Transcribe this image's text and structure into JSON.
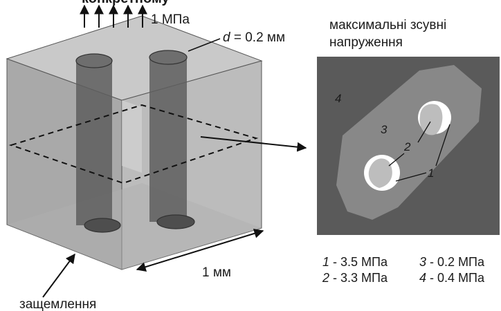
{
  "top_caption": "конкретному",
  "load_label": "1 МПа",
  "thickness_label": {
    "symbol": "d",
    "value": " = 0.2 мм"
  },
  "size_label": "1 мм",
  "fixed_label": "защемлення",
  "stress_title": [
    "максимальні зсувні",
    "напруження"
  ],
  "regions": [
    {
      "id": "1",
      "stress": "3.5 МПа",
      "color": "#ffffff"
    },
    {
      "id": "2",
      "stress": "3.3 МПа",
      "color": "#bdbdbd"
    },
    {
      "id": "3",
      "stress": "0.2 МПа",
      "color": "#888888"
    },
    {
      "id": "4",
      "stress": "0.4 МПа",
      "color": "#5a5a5a"
    }
  ],
  "colors": {
    "cube_face": "#b9b9b9",
    "cylinder": "#5e5e5e",
    "outline": "#333333"
  }
}
